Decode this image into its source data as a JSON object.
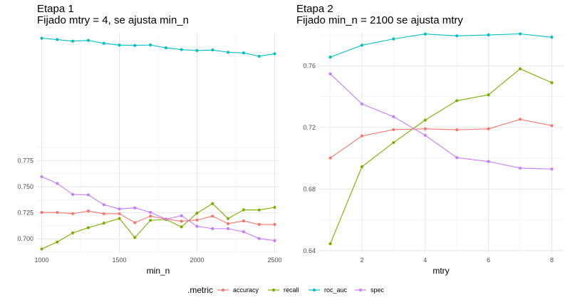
{
  "chart_data": [
    {
      "type": "line",
      "title": "Etapa 1",
      "subtitle": "Fijado mtry = 4, se ajusta min_n",
      "xlabel": "min_n",
      "ylabel": "",
      "xlim": [
        970,
        2530
      ],
      "ylim": [
        0.6865,
        0.8975
      ],
      "x_ticks": [
        1000,
        1500,
        2000,
        2500
      ],
      "x_tick_labels": [
        "1000",
        "1500",
        "2000",
        "2500"
      ],
      "y_ticks": [
        0.7,
        0.725,
        0.75,
        0.775
      ],
      "y_tick_labels": [
        "0.700",
        "0.725",
        "0.750",
        "0.775"
      ],
      "grid": true,
      "x": [
        1000,
        1100,
        1200,
        1300,
        1400,
        1500,
        1600,
        1700,
        1800,
        1900,
        2000,
        2100,
        2200,
        2300,
        2400,
        2500
      ],
      "series": [
        {
          "name": "accuracy",
          "values": [
            0.7253,
            0.7253,
            0.7242,
            0.7267,
            0.7241,
            0.7241,
            0.7155,
            0.7218,
            0.7189,
            0.7169,
            0.7181,
            0.7218,
            0.7146,
            0.7172,
            0.7138,
            0.7138
          ]
        },
        {
          "name": "recall",
          "values": [
            0.6903,
            0.697,
            0.7057,
            0.7107,
            0.7151,
            0.7195,
            0.7013,
            0.7178,
            0.7185,
            0.7115,
            0.7246,
            0.7338,
            0.7195,
            0.7278,
            0.7277,
            0.7302
          ]
        },
        {
          "name": "roc_auc",
          "values": [
            0.8923,
            0.891,
            0.8895,
            0.8902,
            0.8874,
            0.8857,
            0.8854,
            0.8858,
            0.8831,
            0.8814,
            0.8805,
            0.881,
            0.8788,
            0.8782,
            0.875,
            0.8774
          ]
        },
        {
          "name": "spec",
          "values": [
            0.7596,
            0.7531,
            0.7426,
            0.7422,
            0.7328,
            0.7287,
            0.7297,
            0.7254,
            0.719,
            0.7222,
            0.712,
            0.7098,
            0.7098,
            0.7068,
            0.7003,
            0.6983
          ]
        }
      ]
    },
    {
      "type": "line",
      "title": "Etapa 2",
      "subtitle": "Fijado min_n = 2100 se ajusta mtry",
      "xlabel": "mtry",
      "ylabel": "",
      "xlim": [
        0.65,
        8.35
      ],
      "ylim": [
        0.6385,
        0.7815
      ],
      "x_ticks": [
        2,
        4,
        6,
        8
      ],
      "x_tick_labels": [
        "2",
        "4",
        "6",
        "8"
      ],
      "y_ticks": [
        0.64,
        0.68,
        0.72,
        0.76
      ],
      "y_tick_labels": [
        "0.64",
        "0.68",
        "0.72",
        "0.76"
      ],
      "grid": true,
      "x": [
        1,
        2,
        3,
        4,
        5,
        6,
        7,
        8
      ],
      "series": [
        {
          "name": "accuracy",
          "values": [
            0.7002,
            0.7145,
            0.7186,
            0.7191,
            0.7185,
            0.7191,
            0.7253,
            0.7212
          ]
        },
        {
          "name": "recall",
          "values": [
            0.6445,
            0.6945,
            0.7102,
            0.7248,
            0.7374,
            0.7412,
            0.7581,
            0.7491
          ]
        },
        {
          "name": "roc_auc",
          "values": [
            0.7657,
            0.7734,
            0.7775,
            0.7807,
            0.7795,
            0.7801,
            0.7808,
            0.7786
          ]
        },
        {
          "name": "spec",
          "values": [
            0.7548,
            0.7353,
            0.727,
            0.7149,
            0.7004,
            0.6979,
            0.6936,
            0.693
          ]
        }
      ]
    }
  ],
  "legend": {
    "title": ".metric",
    "placement": "bottom",
    "items": [
      {
        "name": "accuracy",
        "color": "#F8766D"
      },
      {
        "name": "recall",
        "color": "#7CAE00"
      },
      {
        "name": "roc_auc",
        "color": "#00BFC4"
      },
      {
        "name": "spec",
        "color": "#C77CFF"
      }
    ]
  },
  "colors": {
    "accuracy": "#F8766D",
    "recall": "#7CAE00",
    "roc_auc": "#00BFC4",
    "spec": "#C77CFF"
  }
}
